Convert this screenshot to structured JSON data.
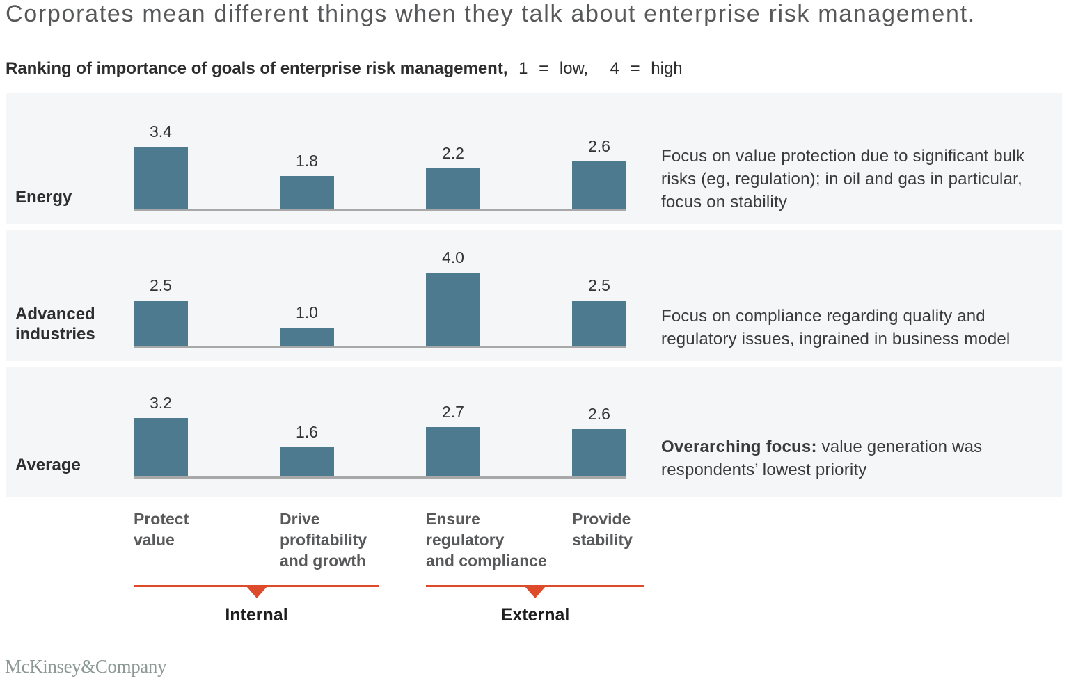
{
  "title": "Corporates mean different things when they talk about enterprise risk management.",
  "subtitle_bold": "Ranking of importance of goals of enterprise risk management,",
  "subtitle_note": " 1 = low,  4 = high",
  "colors": {
    "bar": "#4e7a90",
    "panel_background": "#f4f6f7",
    "axis_line": "#a8a8a8",
    "accent_red": "#de4b2b"
  },
  "chart_data": {
    "type": "bar",
    "ylim": [
      0,
      4
    ],
    "categories": [
      "Protect value",
      "Drive profitability and growth",
      "Ensure regulatory and compliance",
      "Provide stability"
    ],
    "categories_wrapped": [
      "Protect\nvalue",
      "Drive\nprofitability\nand growth",
      "Ensure\nregulatory\nand compliance",
      "Provide\nstability"
    ],
    "groups": [
      {
        "label": "Internal",
        "span": [
          0,
          1
        ]
      },
      {
        "label": "External",
        "span": [
          2,
          3
        ]
      }
    ],
    "series": [
      {
        "name": "Energy",
        "values": [
          3.4,
          1.8,
          2.2,
          2.6
        ],
        "annotation_bold": "",
        "annotation": "Focus on value protection due to significant bulk\nrisks (eg, regulation); in oil and gas in particular,\nfocus on stability"
      },
      {
        "name": "Advanced\nindustries",
        "values": [
          2.5,
          1.0,
          4.0,
          2.5
        ],
        "annotation_bold": "",
        "annotation": "Focus on compliance regarding quality and\nregulatory issues, ingrained in business model"
      },
      {
        "name": "Average",
        "values": [
          3.2,
          1.6,
          2.7,
          2.6
        ],
        "annotation_bold": "Overarching focus:",
        "annotation": " value generation was\nrespondents’ lowest priority"
      }
    ]
  },
  "footer": {
    "logo": "McKinsey&Company"
  }
}
